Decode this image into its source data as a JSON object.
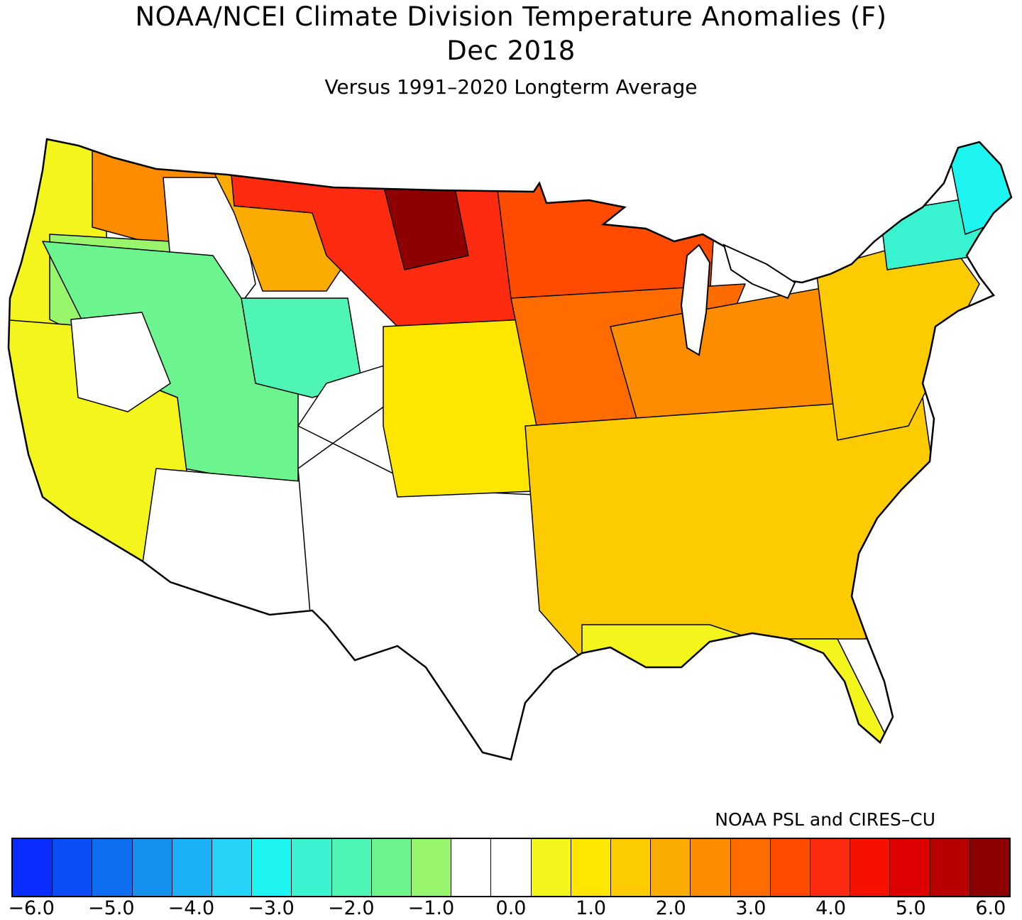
{
  "title": "NOAA/NCEI Climate Division Temperature Anomalies (F)",
  "period": "Dec 2018",
  "subtitle": "Versus 1991–2020 Longterm Average",
  "credit": "NOAA PSL and CIRES–CU",
  "legend": {
    "colors": [
      "#0a2cff",
      "#0b4cf5",
      "#0e6ef0",
      "#1490f0",
      "#1cb0f4",
      "#25d3f7",
      "#1ff5f0",
      "#39f2cf",
      "#4ef5b5",
      "#6cf58f",
      "#99f56c",
      "#ffffff",
      "#ffffff",
      "#f5f51e",
      "#fde600",
      "#fccb00",
      "#fcab00",
      "#fd8c00",
      "#fe6c00",
      "#fe4b00",
      "#fe2b10",
      "#f51000",
      "#dc0000",
      "#b80000",
      "#8e0000"
    ],
    "ticks": [
      "−6.0",
      "−5.0",
      "−4.0",
      "−3.0",
      "−2.0",
      "−1.0",
      "0.0",
      "1.0",
      "2.0",
      "3.0",
      "4.0",
      "5.0",
      "6.0"
    ]
  },
  "regions": [
    {
      "name": "pacific-northwest-coast",
      "anomaly": 1.0,
      "color": "#f5f51e"
    },
    {
      "name": "washington-interior",
      "anomaly": 2.5,
      "color": "#fd8c00"
    },
    {
      "name": "oregon-interior",
      "anomaly": -1.3,
      "color": "#99f56c"
    },
    {
      "name": "idaho-montana-west",
      "anomaly": 0.0,
      "color": "#ffffff"
    },
    {
      "name": "western-montana",
      "anomaly": 2.0,
      "color": "#fcab00"
    },
    {
      "name": "northern-plains",
      "anomaly": 4.5,
      "color": "#fe2b10"
    },
    {
      "name": "north-dakota-core",
      "anomaly": 6.0,
      "color": "#8e0000"
    },
    {
      "name": "upper-midwest",
      "anomaly": 4.0,
      "color": "#fe4b00"
    },
    {
      "name": "great-basin",
      "anomaly": -1.8,
      "color": "#6cf58f"
    },
    {
      "name": "wyoming",
      "anomaly": -2.2,
      "color": "#4ef5b5"
    },
    {
      "name": "california",
      "anomaly": 1.0,
      "color": "#f5f51e"
    },
    {
      "name": "nevada-utah-desert",
      "anomaly": 0.0,
      "color": "#ffffff"
    },
    {
      "name": "southwest",
      "anomaly": 0.0,
      "color": "#ffffff"
    },
    {
      "name": "new-mexico-central",
      "anomaly": -1.2,
      "color": "#99f56c"
    },
    {
      "name": "texas",
      "anomaly": 0.0,
      "color": "#ffffff"
    },
    {
      "name": "central-plains",
      "anomaly": 1.2,
      "color": "#fde600"
    },
    {
      "name": "midwest",
      "anomaly": 3.0,
      "color": "#fe6c00"
    },
    {
      "name": "ohio-valley",
      "anomaly": 2.5,
      "color": "#fd8c00"
    },
    {
      "name": "southeast",
      "anomaly": 1.5,
      "color": "#fccb00"
    },
    {
      "name": "gulf-coast",
      "anomaly": 1.0,
      "color": "#f5f51e"
    },
    {
      "name": "mid-atlantic",
      "anomaly": 1.5,
      "color": "#fccb00"
    },
    {
      "name": "new-england-north",
      "anomaly": -2.5,
      "color": "#39f2cf"
    },
    {
      "name": "maine-north",
      "anomaly": -3.5,
      "color": "#1ff5f0"
    }
  ]
}
